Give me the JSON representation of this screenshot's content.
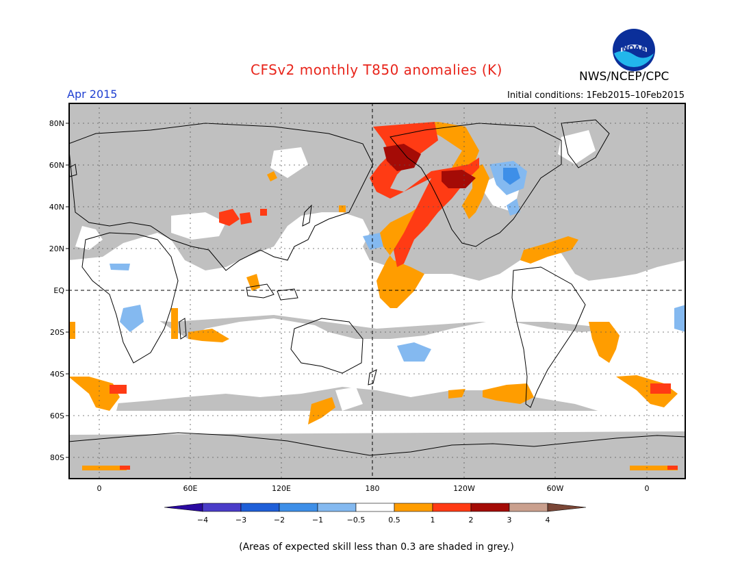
{
  "title": "CFSv2 monthly T850 anomalies (K)",
  "agency": "NWS/NCEP/CPC",
  "logo_text": "NOAA",
  "valid_month": "Apr 2015",
  "initial_conditions": "Initial conditions: 1Feb2015–10Feb2015",
  "footnote": "(Areas of expected skill less than 0.3 are shaded in grey.)",
  "map": {
    "lat_labels": [
      "80N",
      "60N",
      "40N",
      "20N",
      "EQ",
      "20S",
      "40S",
      "60S",
      "80S"
    ],
    "lon_labels": [
      "0",
      "60E",
      "120E",
      "180",
      "120W",
      "60W",
      "0"
    ],
    "low_skill_color": "#c0c0c0"
  },
  "colorbar": {
    "tick_labels": [
      "−4",
      "−3",
      "−2",
      "−1",
      "−0.5",
      "0.5",
      "1",
      "2",
      "3",
      "4"
    ],
    "colors": [
      "#2a0aa0",
      "#4a3cc8",
      "#1f5fd8",
      "#3e8fe8",
      "#84b9f0",
      "#ffffff",
      "#ff9d00",
      "#ff3b14",
      "#a40b06",
      "#caa08e",
      "#7a4636"
    ]
  }
}
